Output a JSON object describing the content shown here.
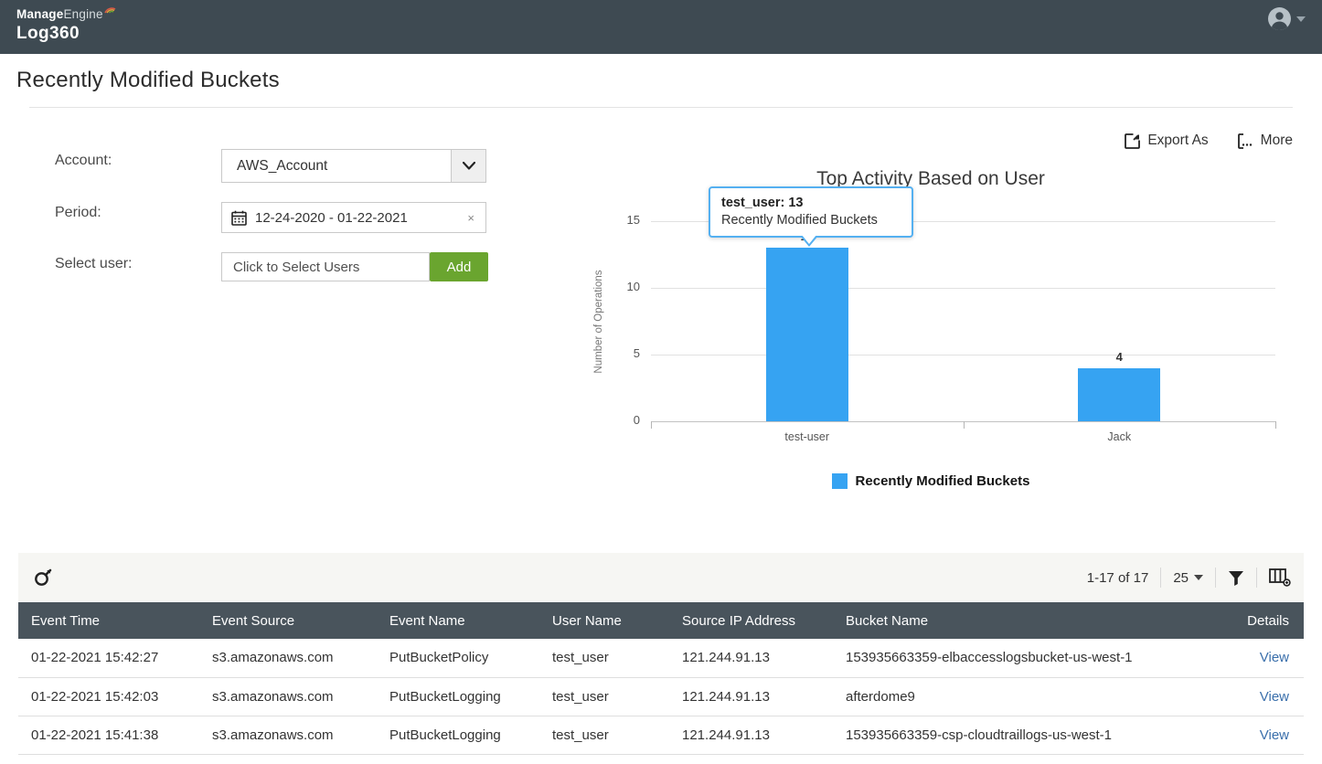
{
  "topbar": {
    "brand_bold": "Manage",
    "brand_light": "Engine",
    "brand_product": "Log360"
  },
  "page_title": "Recently Modified Buckets",
  "filters": {
    "account_label": "Account:",
    "account_value": "AWS_Account",
    "period_label": "Period:",
    "period_value": "12-24-2020 - 01-22-2021",
    "period_clear": "×",
    "user_label": "Select user:",
    "user_placeholder": "Click to Select Users",
    "add_button": "Add"
  },
  "actions": {
    "export_label": "Export As",
    "more_label": "More"
  },
  "chart_data": {
    "type": "bar",
    "title": "Top Activity Based on User",
    "ylabel": "Number of Operations",
    "categories": [
      "test-user",
      "Jack"
    ],
    "values": [
      13,
      4
    ],
    "yticks": [
      0,
      5,
      10,
      15
    ],
    "ylim": [
      0,
      15
    ],
    "grid": true,
    "bar_color": "#36a3f2",
    "legend": [
      "Recently Modified Buckets"
    ],
    "legend_position": "bottom",
    "tooltip": {
      "title": "test_user: 13",
      "subtitle": "Recently Modified Buckets"
    }
  },
  "table": {
    "pagination": "1-17 of 17",
    "page_size": "25",
    "columns": [
      "Event Time",
      "Event Source",
      "Event Name",
      "User Name",
      "Source IP Address",
      "Bucket Name",
      "Details"
    ],
    "view_label": "View",
    "rows": [
      [
        "01-22-2021 15:42:27",
        "s3.amazonaws.com",
        "PutBucketPolicy",
        "test_user",
        "121.244.91.13",
        "153935663359-elbaccesslogsbucket-us-west-1"
      ],
      [
        "01-22-2021 15:42:03",
        "s3.amazonaws.com",
        "PutBucketLogging",
        "test_user",
        "121.244.91.13",
        "afterdome9"
      ],
      [
        "01-22-2021 15:41:38",
        "s3.amazonaws.com",
        "PutBucketLogging",
        "test_user",
        "121.244.91.13",
        "153935663359-csp-cloudtraillogs-us-west-1"
      ]
    ]
  }
}
